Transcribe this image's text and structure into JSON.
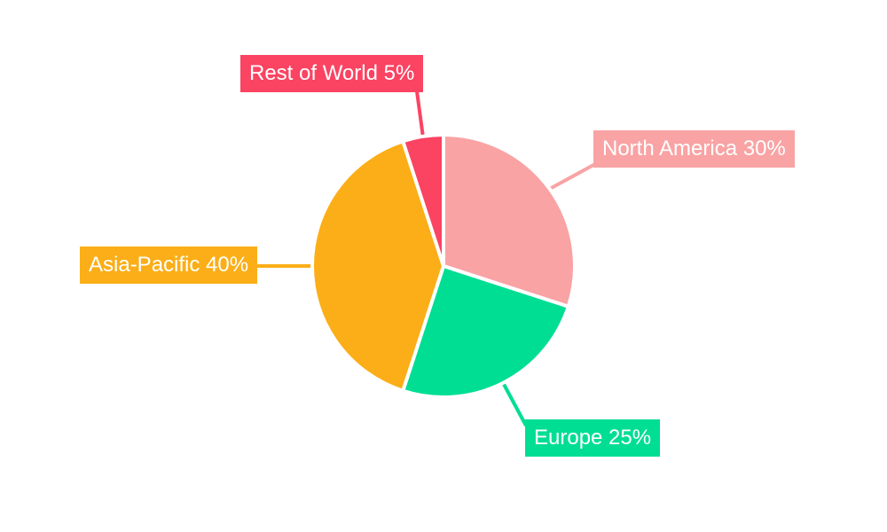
{
  "page": {
    "background": "#FFFFFF"
  },
  "chart_data": {
    "type": "pie",
    "title": "",
    "categories": [
      "North America",
      "Europe",
      "Asia-Pacific",
      "Rest of World"
    ],
    "values": [
      30,
      25,
      40,
      5
    ],
    "unit": "%",
    "start_angle_deg": 0,
    "direction": "clockwise",
    "legend_position": "callout-labels",
    "separator_color": "#FFFFFF",
    "label_text_color": "#FFFFFF",
    "slices": [
      {
        "label": "North America",
        "value": 30,
        "display": "North America 30%",
        "color": "#F9A3A4"
      },
      {
        "label": "Europe",
        "value": 25,
        "display": "Europe 25%",
        "color": "#00DE94"
      },
      {
        "label": "Asia-Pacific",
        "value": 40,
        "display": "Asia-Pacific 40%",
        "color": "#FBAE17"
      },
      {
        "label": "Rest of World",
        "value": 5,
        "display": "Rest of World 5%",
        "color": "#FB4362"
      }
    ]
  }
}
